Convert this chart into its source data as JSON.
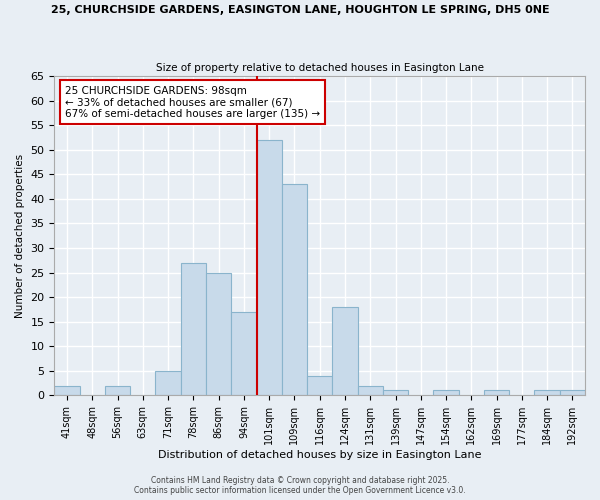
{
  "title_line1": "25, CHURCHSIDE GARDENS, EASINGTON LANE, HOUGHTON LE SPRING, DH5 0NE",
  "title_line2": "Size of property relative to detached houses in Easington Lane",
  "xlabel": "Distribution of detached houses by size in Easington Lane",
  "ylabel": "Number of detached properties",
  "bin_labels": [
    "41sqm",
    "48sqm",
    "56sqm",
    "63sqm",
    "71sqm",
    "78sqm",
    "86sqm",
    "94sqm",
    "101sqm",
    "109sqm",
    "116sqm",
    "124sqm",
    "131sqm",
    "139sqm",
    "147sqm",
    "154sqm",
    "162sqm",
    "169sqm",
    "177sqm",
    "184sqm",
    "192sqm"
  ],
  "bar_heights": [
    2,
    0,
    2,
    0,
    5,
    27,
    25,
    17,
    52,
    43,
    4,
    18,
    2,
    1,
    0,
    1,
    0,
    1,
    0,
    1,
    1
  ],
  "bar_color": "#c8daea",
  "bar_edge_color": "#8ab4cc",
  "ylim": [
    0,
    65
  ],
  "yticks": [
    0,
    5,
    10,
    15,
    20,
    25,
    30,
    35,
    40,
    45,
    50,
    55,
    60,
    65
  ],
  "vline_color": "#cc0000",
  "annotation_text": "25 CHURCHSIDE GARDENS: 98sqm\n← 33% of detached houses are smaller (67)\n67% of semi-detached houses are larger (135) →",
  "annotation_box_color": "#ffffff",
  "annotation_box_edge": "#cc0000",
  "bg_color": "#e8eef4",
  "plot_bg_color": "#e8eef4",
  "grid_color": "#ffffff",
  "footer_line1": "Contains HM Land Registry data © Crown copyright and database right 2025.",
  "footer_line2": "Contains public sector information licensed under the Open Government Licence v3.0."
}
